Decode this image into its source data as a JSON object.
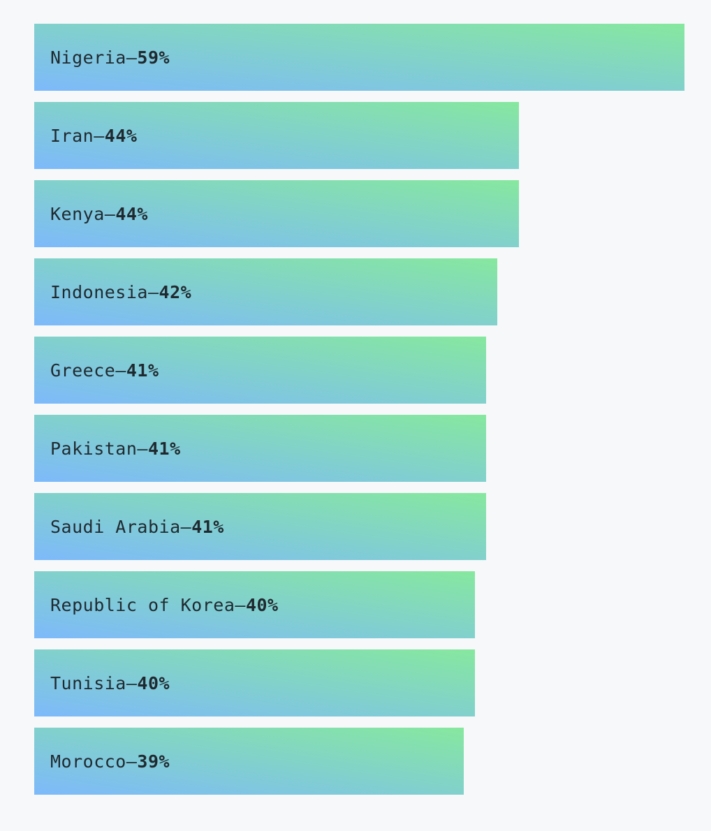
{
  "chart_data": {
    "type": "bar",
    "orientation": "horizontal",
    "separator": " – ",
    "unit": "%",
    "categories": [
      "Nigeria",
      "Iran",
      "Kenya",
      "Indonesia",
      "Greece",
      "Pakistan",
      "Saudi Arabia",
      "Republic of Korea",
      "Tunisia",
      "Morocco"
    ],
    "values": [
      59,
      44,
      44,
      42,
      41,
      41,
      41,
      40,
      40,
      39
    ],
    "value_labels": [
      "59%",
      "44%",
      "44%",
      "42%",
      "41%",
      "41%",
      "41%",
      "40%",
      "40%",
      "39%"
    ],
    "xlim": [
      0,
      59
    ],
    "grid": false,
    "legend": "none",
    "colors": {
      "gradient_start": "#7db9fb",
      "gradient_end": "#86e89e",
      "background": "#f6f8fa",
      "text": "#1f2a30"
    }
  }
}
